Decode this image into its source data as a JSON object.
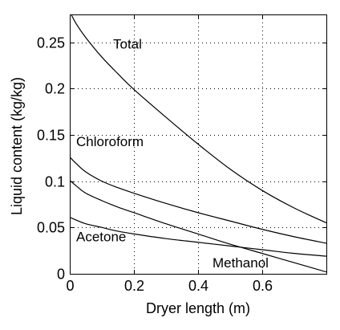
{
  "chart_data": {
    "type": "line",
    "title": "",
    "xlabel": "Dryer length (m)",
    "ylabel": "Liquid content (kg/kg)",
    "xlim": [
      0,
      0.8
    ],
    "ylim": [
      0,
      0.28
    ],
    "xticks": [
      0,
      0.2,
      0.4,
      0.6
    ],
    "yticks": [
      0,
      0.05,
      0.1,
      0.15,
      0.2,
      0.25
    ],
    "xtick_labels": [
      "0",
      "0.2",
      "0.4",
      "0.6"
    ],
    "ytick_labels": [
      "0",
      "0.05",
      "0.1",
      "0.15",
      "0.2",
      "0.25"
    ],
    "grid": true,
    "legend": "none",
    "series": [
      {
        "name": "Total",
        "x": [
          0,
          0.02,
          0.05,
          0.1,
          0.15,
          0.2,
          0.3,
          0.4,
          0.5,
          0.6,
          0.7,
          0.8
        ],
        "y": [
          0.283,
          0.27,
          0.255,
          0.234,
          0.216,
          0.199,
          0.169,
          0.14,
          0.113,
          0.09,
          0.071,
          0.055
        ]
      },
      {
        "name": "Chloroform",
        "x": [
          0,
          0.02,
          0.05,
          0.1,
          0.15,
          0.2,
          0.3,
          0.4,
          0.5,
          0.6,
          0.7,
          0.8
        ],
        "y": [
          0.126,
          0.119,
          0.11,
          0.1,
          0.093,
          0.087,
          0.076,
          0.066,
          0.057,
          0.048,
          0.04,
          0.033
        ]
      },
      {
        "name": "Methanol",
        "x": [
          0,
          0.02,
          0.05,
          0.1,
          0.15,
          0.2,
          0.3,
          0.4,
          0.5,
          0.6,
          0.7,
          0.8
        ],
        "y": [
          0.101,
          0.095,
          0.087,
          0.079,
          0.072,
          0.066,
          0.054,
          0.043,
          0.032,
          0.022,
          0.012,
          0.002
        ]
      },
      {
        "name": "Acetone",
        "x": [
          0,
          0.02,
          0.05,
          0.1,
          0.15,
          0.2,
          0.3,
          0.4,
          0.5,
          0.6,
          0.7,
          0.8
        ],
        "y": [
          0.061,
          0.058,
          0.054,
          0.05,
          0.046,
          0.043,
          0.038,
          0.034,
          0.03,
          0.026,
          0.022,
          0.019
        ]
      }
    ],
    "annotations": [
      {
        "text": "Total",
        "x": 0.135,
        "y": 0.243
      },
      {
        "text": "Chloroform",
        "x": 0.02,
        "y": 0.138
      },
      {
        "text": "Acetone",
        "x": 0.02,
        "y": 0.035
      },
      {
        "text": "Methanol",
        "x": 0.445,
        "y": 0.007
      }
    ]
  }
}
